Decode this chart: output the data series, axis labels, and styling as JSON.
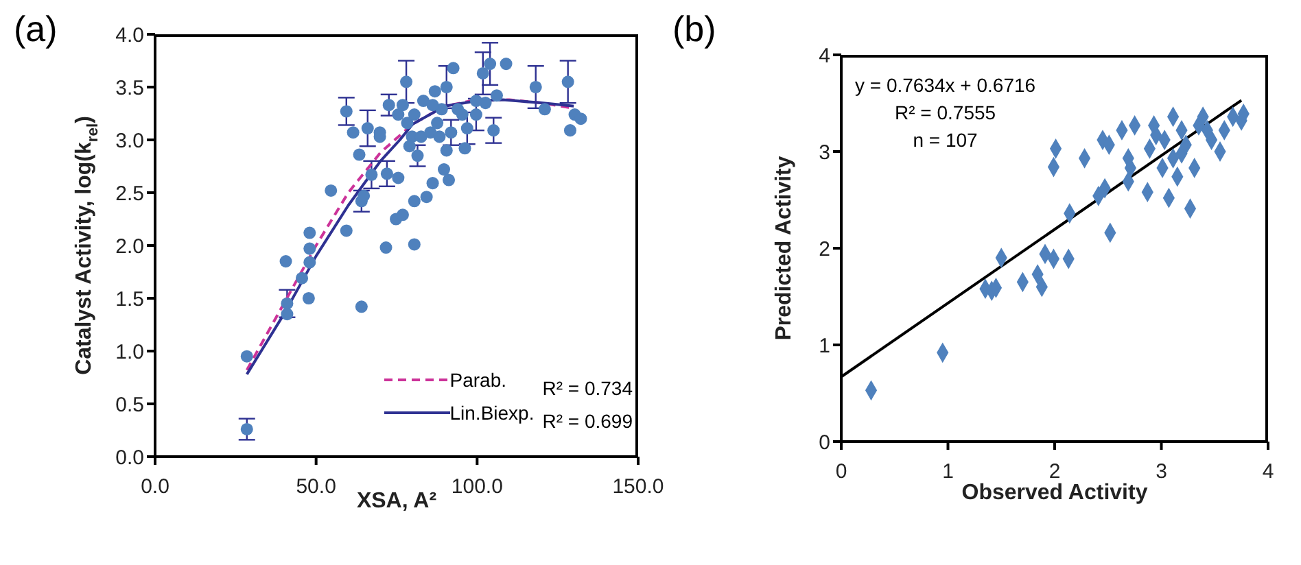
{
  "chart_data": [
    {
      "type": "scatter",
      "title": "(a)",
      "xlabel": "XSA, A²",
      "ylabel": "Catalyst Activity, log(k$_{rel}$)",
      "xlim": [
        0,
        150
      ],
      "ylim": [
        0,
        4
      ],
      "xticks": [
        {
          "value": 0,
          "label": "0.0"
        },
        {
          "value": 50,
          "label": "50.0"
        },
        {
          "value": 100,
          "label": "100.0"
        },
        {
          "value": 150,
          "label": "150.0"
        }
      ],
      "yticks": [
        {
          "value": 0,
          "label": "0.0"
        },
        {
          "value": 0.5,
          "label": "0.5"
        },
        {
          "value": 1,
          "label": "1.0"
        },
        {
          "value": 1.5,
          "label": "1.5"
        },
        {
          "value": 2,
          "label": "2.0"
        },
        {
          "value": 2.5,
          "label": "2.5"
        },
        {
          "value": 3,
          "label": "3.0"
        },
        {
          "value": 3.5,
          "label": "3.5"
        },
        {
          "value": 4,
          "label": "4.0"
        }
      ],
      "marker": "circle",
      "legend": "bottom right",
      "annotations": [
        "R² = 0.734",
        "R² = 0.699"
      ],
      "series": [
        {
          "color": "#4f81bd",
          "x": [
            28.5,
            28.5,
            40.6,
            41,
            41,
            45.6,
            47.7,
            48,
            48,
            48,
            54.6,
            59.4,
            59.4,
            61.5,
            63.4,
            64.1,
            64.1,
            64.8,
            66,
            67.2,
            69.8,
            72,
            71.7,
            72.6,
            75.5,
            74.8,
            76.9,
            78,
            78.3,
            79.8,
            80.5,
            80.5,
            80.5,
            81.5,
            82.6,
            83.3,
            84.3,
            85.5,
            86.2,
            86.9,
            87.6,
            89,
            89.7,
            90.5,
            90.5,
            91.2,
            92.6,
            91.9,
            95.4,
            96.2,
            96.9,
            99.7,
            101.8,
            102.6,
            104,
            105.1,
            106.1,
            109,
            118.2,
            121,
            128.2,
            128.9,
            130.3,
            132.2,
            69.8,
            75.5,
            76.9,
            79,
            88.3,
            86.2,
            94,
            99.7
          ],
          "values": [
            0.26,
            0.95,
            1.85,
            1.45,
            1.35,
            1.69,
            1.5,
            2.12,
            1.97,
            1.84,
            2.52,
            2.14,
            3.27,
            3.07,
            2.86,
            1.42,
            2.42,
            2.47,
            3.11,
            2.67,
            3.03,
            2.68,
            1.98,
            3.33,
            2.64,
            2.25,
            2.29,
            3.55,
            3.16,
            3.03,
            3.24,
            2.42,
            2.01,
            2.85,
            3.03,
            3.37,
            2.46,
            3.07,
            2.59,
            3.46,
            3.16,
            3.29,
            2.72,
            2.9,
            3.5,
            2.62,
            3.68,
            3.07,
            3.24,
            2.92,
            3.11,
            3.24,
            3.63,
            3.35,
            3.72,
            3.09,
            3.42,
            3.72,
            3.5,
            3.29,
            3.55,
            3.09,
            3.24,
            3.2,
            3.07,
            3.24,
            3.33,
            2.94,
            3.03,
            3.33,
            3.29,
            3.37
          ],
          "errors": [
            0.1,
            null,
            null,
            0.13,
            null,
            null,
            null,
            null,
            null,
            null,
            null,
            null,
            0.13,
            null,
            null,
            null,
            0.1,
            null,
            0.17,
            0.13,
            null,
            0.12,
            null,
            0.1,
            null,
            null,
            null,
            0.2,
            null,
            null,
            null,
            null,
            null,
            0.1,
            null,
            null,
            null,
            null,
            null,
            null,
            null,
            null,
            null,
            null,
            0.2,
            null,
            null,
            0.12,
            null,
            null,
            0.15,
            0.15,
            0.2,
            null,
            0.2,
            0.12,
            null,
            null,
            0.2,
            null,
            0.2,
            null,
            null,
            null,
            null,
            null,
            null,
            null,
            null,
            null,
            null,
            null
          ]
        },
        {
          "type": "line",
          "marker": "none",
          "name": "Parab.",
          "color": "#cc3399",
          "line_style": "dashed",
          "x": [
            28.5,
            40,
            50,
            60,
            70,
            80,
            90,
            100,
            110,
            120,
            130
          ],
          "values": [
            0.82,
            1.45,
            2.0,
            2.5,
            2.88,
            3.15,
            3.32,
            3.38,
            3.38,
            3.35,
            3.3
          ]
        },
        {
          "type": "line",
          "marker": "none",
          "name": "Lin.Biexp.",
          "color": "#2e3192",
          "line_style": "solid",
          "x": [
            28.5,
            40,
            50,
            60,
            70,
            76,
            80,
            90,
            100,
            108,
            120,
            130
          ],
          "values": [
            0.78,
            1.35,
            1.9,
            2.38,
            2.8,
            3.0,
            3.15,
            3.32,
            3.37,
            3.38,
            3.35,
            3.32
          ]
        }
      ]
    },
    {
      "type": "scatter",
      "title": "(b)",
      "xlabel": "Observed Activity",
      "ylabel": "Predicted Activity",
      "xlim": [
        0,
        4
      ],
      "ylim": [
        0,
        4
      ],
      "xticks": [
        0,
        1,
        2,
        3,
        4
      ],
      "yticks": [
        0,
        1,
        2,
        3,
        4
      ],
      "marker": "diamond",
      "annotations": [
        "y = 0.7634x  + 0.6716",
        "R² = 0.7555",
        "n = 107"
      ],
      "series": [
        {
          "color": "#4f81bd",
          "x": [
            0.28,
            0.95,
            1.35,
            1.41,
            1.45,
            1.5,
            1.7,
            1.84,
            1.88,
            1.91,
            1.99,
            2.01,
            1.99,
            2.13,
            2.14,
            2.28,
            2.41,
            2.47,
            2.45,
            2.51,
            2.52,
            2.63,
            2.69,
            2.71,
            2.69,
            2.75,
            2.87,
            2.89,
            2.93,
            3.01,
            3.07,
            3.03,
            3.11,
            3.15,
            3.19,
            3.27,
            3.31,
            3.35,
            3.39,
            3.47,
            3.55,
            3.59,
            3.67,
            3.75,
            3.77,
            3.19,
            3.23,
            3.43,
            2.95,
            3.11
          ],
          "values": [
            0.53,
            0.92,
            1.58,
            1.56,
            1.59,
            1.9,
            1.65,
            1.73,
            1.6,
            1.94,
            1.89,
            3.03,
            2.84,
            1.89,
            2.36,
            2.93,
            2.54,
            2.62,
            3.12,
            3.07,
            2.16,
            3.22,
            2.93,
            2.83,
            2.69,
            3.27,
            2.58,
            3.03,
            3.27,
            2.83,
            2.52,
            3.12,
            3.36,
            2.74,
            2.98,
            2.41,
            2.83,
            3.27,
            3.36,
            3.12,
            3.0,
            3.22,
            3.36,
            3.32,
            3.39,
            3.22,
            3.07,
            3.22,
            3.17,
            2.93
          ]
        },
        {
          "type": "line",
          "marker": "none",
          "color": "#000000",
          "line_style": "solid",
          "x": [
            0,
            3.75
          ],
          "values": [
            0.67,
            3.53
          ]
        }
      ]
    }
  ]
}
